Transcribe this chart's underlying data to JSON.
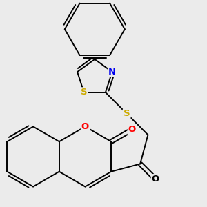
{
  "bg_color": "#ebebeb",
  "bond_color": "#000000",
  "bond_width": 1.4,
  "dbo": 0.055,
  "atom_S_color": "#ccaa00",
  "atom_N_color": "#0000ee",
  "atom_O_red_color": "#ff0000",
  "atom_O_black_color": "#000000",
  "xlim": [
    -2.8,
    2.8
  ],
  "ylim": [
    -2.8,
    2.8
  ],
  "BL": 0.82,
  "fs": 9.5
}
